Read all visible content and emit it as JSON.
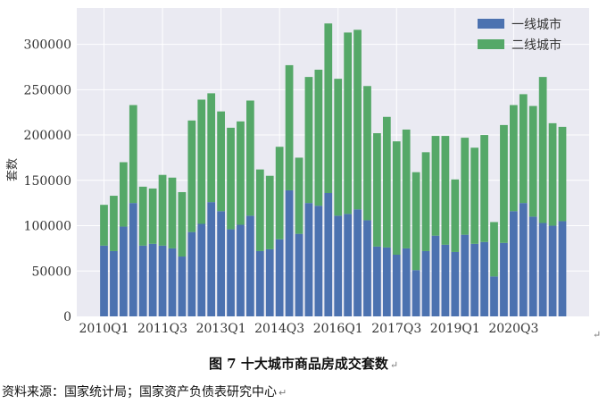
{
  "chart_data": {
    "type": "bar",
    "stacked": true,
    "title": "",
    "xlabel": "",
    "ylabel": "套数",
    "ylim": [
      0,
      340000
    ],
    "y_ticks": [
      0,
      50000,
      100000,
      150000,
      200000,
      250000,
      300000
    ],
    "y_tick_labels": [
      "0",
      "50000",
      "100000",
      "150000",
      "200000",
      "250000",
      "300000"
    ],
    "x_tick_labels": [
      {
        "index": 0,
        "label": "2010Q1"
      },
      {
        "index": 6,
        "label": "2011Q3"
      },
      {
        "index": 12,
        "label": "2013Q1"
      },
      {
        "index": 18,
        "label": "2014Q3"
      },
      {
        "index": 24,
        "label": "2016Q1"
      },
      {
        "index": 30,
        "label": "2017Q3"
      },
      {
        "index": 36,
        "label": "2019Q1"
      },
      {
        "index": 42,
        "label": "2020Q3"
      }
    ],
    "grid": true,
    "legend_position": "top-right",
    "series": [
      {
        "name": "一线城市",
        "color": "#4c72b0",
        "values": [
          78000,
          72000,
          99000,
          125000,
          78000,
          80000,
          78000,
          75000,
          66000,
          93000,
          102000,
          126000,
          116000,
          96000,
          101000,
          111000,
          72000,
          74000,
          85000,
          139000,
          91000,
          125000,
          122000,
          136000,
          111000,
          113000,
          118000,
          106000,
          77000,
          76000,
          68000,
          75000,
          51000,
          72000,
          89000,
          79000,
          71000,
          90000,
          80000,
          82000,
          44000,
          81000,
          116000,
          125000,
          110000,
          103000,
          100000,
          105000
        ]
      },
      {
        "name": "二线城市",
        "color": "#55a868",
        "values": [
          45000,
          61000,
          71000,
          108000,
          65000,
          61000,
          78000,
          78000,
          71000,
          123000,
          137000,
          120000,
          110000,
          112000,
          114000,
          127000,
          90000,
          81000,
          102000,
          138000,
          84000,
          139000,
          150000,
          187000,
          151000,
          200000,
          198000,
          148000,
          125000,
          144000,
          125000,
          131000,
          108000,
          109000,
          110000,
          120000,
          80000,
          107000,
          106000,
          118000,
          60000,
          130000,
          117000,
          120000,
          122000,
          161000,
          113000,
          104000
        ]
      }
    ]
  },
  "caption": {
    "text": "图 7  十大城市商品房成交套数",
    "mark": "↵"
  },
  "source": {
    "text": "资料来源：国家统计局；国家资产负债表研究中心",
    "mark": "↵"
  },
  "stray_mark": "↵"
}
